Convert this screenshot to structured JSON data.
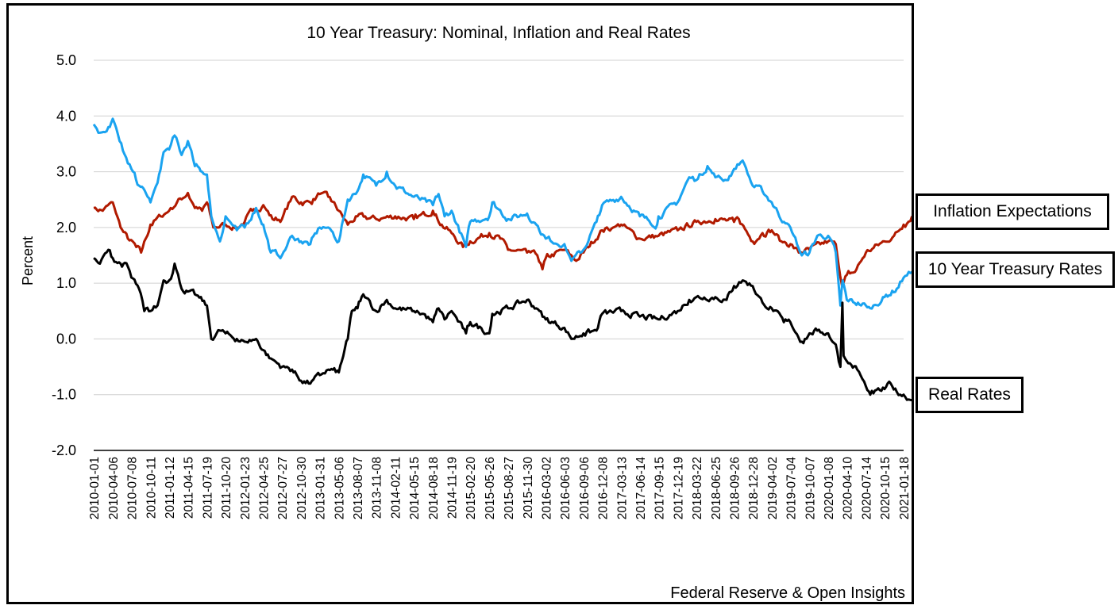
{
  "chart_data": {
    "type": "line",
    "title": "10 Year Treasury: Nominal, Inflation and Real Rates",
    "ylabel": "Percent",
    "xlabel": "",
    "source_note": "Federal Reserve & Open Insights",
    "ylim": [
      -2.0,
      5.0
    ],
    "yticks": [
      "5.0",
      "4.0",
      "3.0",
      "2.0",
      "1.0",
      "0.0",
      "-1.0",
      "-2.0"
    ],
    "grid": true,
    "legend": "right-side labeled boxes",
    "x_ticks": [
      "2010-01-01",
      "2010-04-06",
      "2010-07-08",
      "2010-10-11",
      "2011-01-12",
      "2011-04-15",
      "2011-07-19",
      "2011-10-20",
      "2012-01-23",
      "2012-04-25",
      "2012-07-27",
      "2012-10-30",
      "2013-01-31",
      "2013-05-06",
      "2013-08-07",
      "2013-11-08",
      "2014-02-11",
      "2014-05-15",
      "2014-08-18",
      "2014-11-19",
      "2015-02-20",
      "2015-05-26",
      "2015-08-27",
      "2015-11-30",
      "2016-03-02",
      "2016-06-03",
      "2016-09-06",
      "2016-12-08",
      "2017-03-13",
      "2017-06-14",
      "2017-09-15",
      "2017-12-19",
      "2018-03-22",
      "2018-06-25",
      "2018-09-26",
      "2018-12-28",
      "2019-04-02",
      "2019-07-04",
      "2019-10-07",
      "2020-01-08",
      "2020-04-10",
      "2020-07-14",
      "2020-10-15",
      "2021-01-18"
    ],
    "series": [
      {
        "name": "Inflation Expectations",
        "color": "#b11a00",
        "points": [
          [
            "2010-01-01",
            2.35
          ],
          [
            "2010-02-15",
            2.3
          ],
          [
            "2010-04-06",
            2.45
          ],
          [
            "2010-05-15",
            2.0
          ],
          [
            "2010-06-20",
            1.8
          ],
          [
            "2010-08-01",
            1.65
          ],
          [
            "2010-08-25",
            1.55
          ],
          [
            "2010-10-11",
            2.05
          ],
          [
            "2010-12-01",
            2.2
          ],
          [
            "2011-01-12",
            2.3
          ],
          [
            "2011-02-20",
            2.45
          ],
          [
            "2011-04-15",
            2.62
          ],
          [
            "2011-05-20",
            2.35
          ],
          [
            "2011-06-25",
            2.3
          ],
          [
            "2011-07-19",
            2.45
          ],
          [
            "2011-08-20",
            2.0
          ],
          [
            "2011-10-20",
            2.05
          ],
          [
            "2011-12-15",
            2.0
          ],
          [
            "2012-01-23",
            2.1
          ],
          [
            "2012-03-01",
            2.3
          ],
          [
            "2012-04-25",
            2.4
          ],
          [
            "2012-06-10",
            2.15
          ],
          [
            "2012-07-27",
            2.15
          ],
          [
            "2012-09-15",
            2.55
          ],
          [
            "2012-10-30",
            2.45
          ],
          [
            "2012-12-15",
            2.45
          ],
          [
            "2013-01-31",
            2.6
          ],
          [
            "2013-03-15",
            2.55
          ],
          [
            "2013-05-06",
            2.3
          ],
          [
            "2013-06-20",
            2.05
          ],
          [
            "2013-08-07",
            2.2
          ],
          [
            "2013-11-08",
            2.15
          ],
          [
            "2014-02-11",
            2.2
          ],
          [
            "2014-05-15",
            2.15
          ],
          [
            "2014-08-18",
            2.3
          ],
          [
            "2014-10-01",
            2.05
          ],
          [
            "2014-11-19",
            1.9
          ],
          [
            "2015-01-15",
            1.65
          ],
          [
            "2015-02-20",
            1.75
          ],
          [
            "2015-05-26",
            1.9
          ],
          [
            "2015-07-20",
            1.8
          ],
          [
            "2015-08-27",
            1.6
          ],
          [
            "2015-11-30",
            1.55
          ],
          [
            "2016-01-20",
            1.5
          ],
          [
            "2016-02-15",
            1.25
          ],
          [
            "2016-03-02",
            1.45
          ],
          [
            "2016-06-03",
            1.6
          ],
          [
            "2016-08-01",
            1.4
          ],
          [
            "2016-09-06",
            1.55
          ],
          [
            "2016-12-08",
            1.95
          ],
          [
            "2017-02-01",
            2.0
          ],
          [
            "2017-03-13",
            2.05
          ],
          [
            "2017-06-14",
            1.8
          ],
          [
            "2017-09-15",
            1.85
          ],
          [
            "2017-12-19",
            1.95
          ],
          [
            "2018-03-22",
            2.1
          ],
          [
            "2018-06-25",
            2.15
          ],
          [
            "2018-09-26",
            2.1
          ],
          [
            "2018-10-20",
            2.15
          ],
          [
            "2018-12-28",
            1.75
          ],
          [
            "2019-02-15",
            1.9
          ],
          [
            "2019-04-02",
            1.95
          ],
          [
            "2019-05-20",
            1.75
          ],
          [
            "2019-07-04",
            1.7
          ],
          [
            "2019-08-15",
            1.55
          ],
          [
            "2019-10-07",
            1.6
          ],
          [
            "2020-01-08",
            1.75
          ],
          [
            "2020-02-15",
            1.7
          ],
          [
            "2020-03-15",
            1.0
          ],
          [
            "2020-03-20",
            0.95
          ],
          [
            "2020-04-10",
            1.15
          ],
          [
            "2020-05-20",
            1.2
          ],
          [
            "2020-07-14",
            1.55
          ],
          [
            "2020-10-15",
            1.75
          ],
          [
            "2020-12-01",
            1.85
          ],
          [
            "2021-01-18",
            2.05
          ],
          [
            "2021-03-01",
            2.2
          ]
        ]
      },
      {
        "name": "10 Year Treasury Rates",
        "color": "#1aa3f0",
        "points": [
          [
            "2010-01-01",
            3.85
          ],
          [
            "2010-02-01",
            3.7
          ],
          [
            "2010-03-15",
            3.8
          ],
          [
            "2010-04-06",
            3.95
          ],
          [
            "2010-05-10",
            3.55
          ],
          [
            "2010-06-20",
            3.15
          ],
          [
            "2010-07-08",
            3.05
          ],
          [
            "2010-08-15",
            2.75
          ],
          [
            "2010-09-20",
            2.6
          ],
          [
            "2010-10-11",
            2.45
          ],
          [
            "2010-11-15",
            2.8
          ],
          [
            "2010-12-15",
            3.35
          ],
          [
            "2011-01-12",
            3.4
          ],
          [
            "2011-02-08",
            3.65
          ],
          [
            "2011-03-15",
            3.3
          ],
          [
            "2011-04-15",
            3.55
          ],
          [
            "2011-05-20",
            3.1
          ],
          [
            "2011-06-25",
            3.0
          ],
          [
            "2011-07-19",
            2.95
          ],
          [
            "2011-08-10",
            2.2
          ],
          [
            "2011-09-22",
            1.75
          ],
          [
            "2011-10-20",
            2.2
          ],
          [
            "2011-12-15",
            1.95
          ],
          [
            "2012-01-23",
            2.0
          ],
          [
            "2012-03-20",
            2.35
          ],
          [
            "2012-04-25",
            2.05
          ],
          [
            "2012-06-01",
            1.55
          ],
          [
            "2012-07-27",
            1.5
          ],
          [
            "2012-09-15",
            1.85
          ],
          [
            "2012-10-30",
            1.75
          ],
          [
            "2012-12-15",
            1.7
          ],
          [
            "2013-01-31",
            2.0
          ],
          [
            "2013-03-15",
            2.0
          ],
          [
            "2013-05-06",
            1.75
          ],
          [
            "2013-06-20",
            2.5
          ],
          [
            "2013-08-07",
            2.65
          ],
          [
            "2013-09-05",
            2.95
          ],
          [
            "2013-11-08",
            2.75
          ],
          [
            "2013-12-31",
            3.0
          ],
          [
            "2014-02-11",
            2.75
          ],
          [
            "2014-05-15",
            2.55
          ],
          [
            "2014-08-18",
            2.4
          ],
          [
            "2014-09-15",
            2.6
          ],
          [
            "2014-10-15",
            2.2
          ],
          [
            "2014-11-19",
            2.3
          ],
          [
            "2015-01-30",
            1.65
          ],
          [
            "2015-02-20",
            2.1
          ],
          [
            "2015-05-26",
            2.2
          ],
          [
            "2015-06-10",
            2.45
          ],
          [
            "2015-08-27",
            2.15
          ],
          [
            "2015-11-30",
            2.25
          ],
          [
            "2016-01-15",
            2.05
          ],
          [
            "2016-03-02",
            1.8
          ],
          [
            "2016-06-03",
            1.7
          ],
          [
            "2016-07-08",
            1.4
          ],
          [
            "2016-09-06",
            1.6
          ],
          [
            "2016-11-10",
            2.1
          ],
          [
            "2016-12-08",
            2.4
          ],
          [
            "2017-03-13",
            2.55
          ],
          [
            "2017-06-14",
            2.2
          ],
          [
            "2017-09-08",
            2.05
          ],
          [
            "2017-09-15",
            2.2
          ],
          [
            "2017-12-19",
            2.45
          ],
          [
            "2018-02-15",
            2.9
          ],
          [
            "2018-03-22",
            2.85
          ],
          [
            "2018-05-17",
            3.1
          ],
          [
            "2018-06-25",
            2.9
          ],
          [
            "2018-08-20",
            2.85
          ],
          [
            "2018-09-26",
            3.05
          ],
          [
            "2018-11-08",
            3.2
          ],
          [
            "2018-12-28",
            2.75
          ],
          [
            "2019-02-15",
            2.65
          ],
          [
            "2019-04-02",
            2.45
          ],
          [
            "2019-06-01",
            2.1
          ],
          [
            "2019-07-04",
            2.0
          ],
          [
            "2019-08-30",
            1.5
          ],
          [
            "2019-10-07",
            1.55
          ],
          [
            "2019-11-15",
            1.85
          ],
          [
            "2020-01-08",
            1.85
          ],
          [
            "2020-02-15",
            1.55
          ],
          [
            "2020-03-09",
            0.6
          ],
          [
            "2020-03-20",
            1.05
          ],
          [
            "2020-04-10",
            0.7
          ],
          [
            "2020-07-14",
            0.6
          ],
          [
            "2020-08-05",
            0.55
          ],
          [
            "2020-10-15",
            0.75
          ],
          [
            "2020-12-15",
            0.9
          ],
          [
            "2021-01-18",
            1.1
          ],
          [
            "2021-03-01",
            1.2
          ]
        ]
      },
      {
        "name": "Real Rates",
        "color": "#000000",
        "points": [
          [
            "2010-01-01",
            1.45
          ],
          [
            "2010-02-01",
            1.35
          ],
          [
            "2010-03-15",
            1.6
          ],
          [
            "2010-04-06",
            1.45
          ],
          [
            "2010-05-15",
            1.35
          ],
          [
            "2010-06-20",
            1.3
          ],
          [
            "2010-07-08",
            1.1
          ],
          [
            "2010-08-15",
            0.9
          ],
          [
            "2010-09-10",
            0.5
          ],
          [
            "2010-10-11",
            0.5
          ],
          [
            "2010-11-15",
            0.6
          ],
          [
            "2010-12-15",
            1.05
          ],
          [
            "2011-01-12",
            1.05
          ],
          [
            "2011-02-08",
            1.35
          ],
          [
            "2011-03-15",
            0.9
          ],
          [
            "2011-04-15",
            0.85
          ],
          [
            "2011-05-20",
            0.8
          ],
          [
            "2011-07-19",
            0.6
          ],
          [
            "2011-08-10",
            0.0
          ],
          [
            "2011-09-22",
            0.15
          ],
          [
            "2011-10-20",
            0.1
          ],
          [
            "2011-12-15",
            0.0
          ],
          [
            "2012-01-23",
            -0.05
          ],
          [
            "2012-03-20",
            0.0
          ],
          [
            "2012-04-25",
            -0.2
          ],
          [
            "2012-06-01",
            -0.35
          ],
          [
            "2012-07-27",
            -0.5
          ],
          [
            "2012-09-15",
            -0.55
          ],
          [
            "2012-10-30",
            -0.75
          ],
          [
            "2012-12-15",
            -0.8
          ],
          [
            "2013-01-31",
            -0.65
          ],
          [
            "2013-03-15",
            -0.55
          ],
          [
            "2013-05-06",
            -0.6
          ],
          [
            "2013-06-20",
            0.0
          ],
          [
            "2013-07-10",
            0.5
          ],
          [
            "2013-08-07",
            0.55
          ],
          [
            "2013-09-05",
            0.8
          ],
          [
            "2013-11-08",
            0.5
          ],
          [
            "2013-12-31",
            0.7
          ],
          [
            "2014-02-11",
            0.55
          ],
          [
            "2014-05-15",
            0.5
          ],
          [
            "2014-07-01",
            0.45
          ],
          [
            "2014-08-18",
            0.3
          ],
          [
            "2014-09-15",
            0.55
          ],
          [
            "2014-10-15",
            0.35
          ],
          [
            "2014-11-19",
            0.5
          ],
          [
            "2015-01-30",
            0.1
          ],
          [
            "2015-02-20",
            0.3
          ],
          [
            "2015-05-26",
            0.1
          ],
          [
            "2015-06-10",
            0.45
          ],
          [
            "2015-08-27",
            0.55
          ],
          [
            "2015-11-30",
            0.7
          ],
          [
            "2016-01-15",
            0.55
          ],
          [
            "2016-03-02",
            0.35
          ],
          [
            "2016-06-03",
            0.2
          ],
          [
            "2016-07-08",
            0.0
          ],
          [
            "2016-09-06",
            0.1
          ],
          [
            "2016-11-10",
            0.15
          ],
          [
            "2016-12-08",
            0.45
          ],
          [
            "2017-03-13",
            0.5
          ],
          [
            "2017-06-14",
            0.4
          ],
          [
            "2017-09-15",
            0.35
          ],
          [
            "2017-12-19",
            0.5
          ],
          [
            "2018-02-15",
            0.7
          ],
          [
            "2018-03-22",
            0.75
          ],
          [
            "2018-06-25",
            0.75
          ],
          [
            "2018-08-20",
            0.7
          ],
          [
            "2018-09-26",
            0.95
          ],
          [
            "2018-11-08",
            1.05
          ],
          [
            "2018-12-28",
            0.95
          ],
          [
            "2019-02-15",
            0.65
          ],
          [
            "2019-04-02",
            0.55
          ],
          [
            "2019-06-01",
            0.3
          ],
          [
            "2019-07-04",
            0.3
          ],
          [
            "2019-08-30",
            -0.05
          ],
          [
            "2019-10-07",
            0.1
          ],
          [
            "2019-11-15",
            0.15
          ],
          [
            "2020-01-08",
            0.1
          ],
          [
            "2020-02-15",
            -0.1
          ],
          [
            "2020-03-09",
            -0.5
          ],
          [
            "2020-03-19",
            0.65
          ],
          [
            "2020-03-25",
            -0.3
          ],
          [
            "2020-04-10",
            -0.4
          ],
          [
            "2020-06-01",
            -0.55
          ],
          [
            "2020-07-14",
            -0.85
          ],
          [
            "2020-08-05",
            -1.0
          ],
          [
            "2020-10-15",
            -0.9
          ],
          [
            "2020-11-15",
            -0.8
          ],
          [
            "2020-12-15",
            -0.95
          ],
          [
            "2021-01-18",
            -1.0
          ],
          [
            "2021-03-01",
            -1.1
          ]
        ]
      }
    ]
  }
}
